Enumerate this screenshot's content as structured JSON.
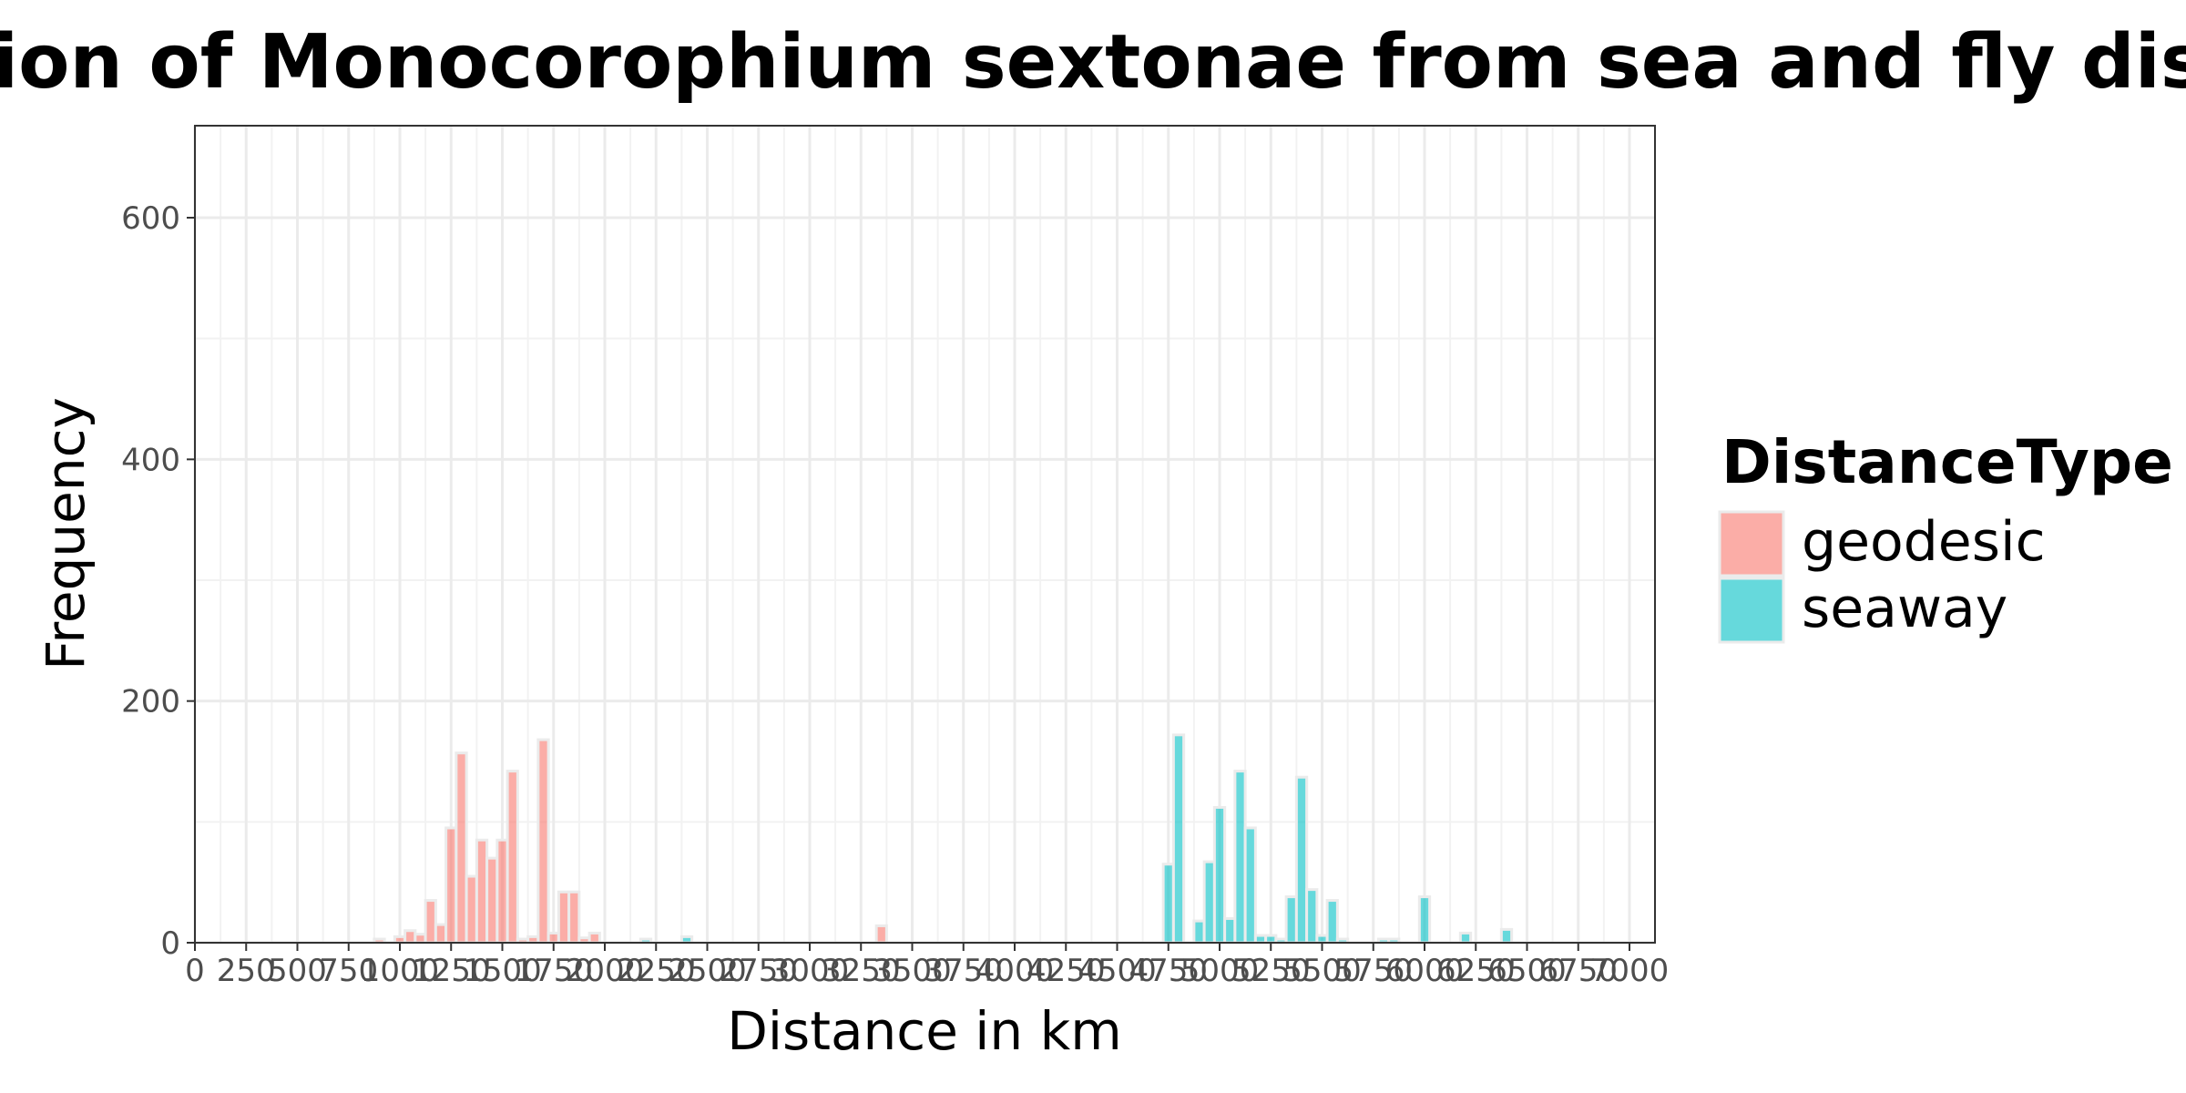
{
  "chart_data": {
    "type": "bar",
    "title": "ion of Monocorophium sextonae from sea and fly distances",
    "xlabel": "Distance in km",
    "ylabel": "Frequency",
    "xlim": [
      0,
      7250
    ],
    "ylim": [
      0,
      670
    ],
    "grid": true,
    "legend_position": "right",
    "legend_title": "DistanceType",
    "x_ticks": [
      0,
      250,
      500,
      750,
      1000,
      1250,
      1500,
      1750,
      2000,
      2250,
      2500,
      2750,
      3000,
      3250,
      3500,
      3750,
      4000,
      4250,
      4500,
      4750,
      5000,
      5250,
      5500,
      5750,
      6000,
      6250,
      6500,
      6750,
      7000
    ],
    "x_tick_labels": [
      "0",
      "250",
      "500",
      "750",
      "1000",
      "1250",
      "1500",
      "1750",
      "2000",
      "2250",
      "2500",
      "2750",
      "3000",
      "3250",
      "3500",
      "3750",
      "4000",
      "4250",
      "4500",
      "4750",
      "5000",
      "5250",
      "5500",
      "5750",
      "6000",
      "6250",
      "6500",
      "6750",
      "7000"
    ],
    "y_ticks": [
      0,
      200,
      400,
      600
    ],
    "y_tick_labels": [
      "0",
      "200",
      "400",
      "600"
    ],
    "bin_width": 50,
    "series": [
      {
        "name": "geodesic",
        "color": "#F8766D",
        "x": [
          900,
          1000,
          1050,
          1100,
          1150,
          1200,
          1250,
          1300,
          1350,
          1400,
          1450,
          1500,
          1550,
          1600,
          1650,
          1700,
          1750,
          1800,
          1850,
          1900,
          1950,
          3350
        ],
        "values": [
          3,
          5,
          10,
          7,
          35,
          15,
          95,
          157,
          55,
          85,
          70,
          85,
          142,
          3,
          5,
          168,
          8,
          42,
          42,
          4,
          8,
          14
        ]
      },
      {
        "name": "seaway",
        "color": "#00BFC4",
        "x": [
          2200,
          2400,
          4750,
          4800,
          4900,
          4950,
          5000,
          5050,
          5100,
          5150,
          5200,
          5250,
          5300,
          5350,
          5400,
          5450,
          5500,
          5550,
          5600,
          5800,
          5850,
          6000,
          6200,
          6400
        ],
        "values": [
          3,
          5,
          65,
          172,
          18,
          67,
          112,
          20,
          142,
          95,
          6,
          6,
          3,
          38,
          137,
          44,
          6,
          35,
          3,
          3,
          3,
          38,
          8,
          11
        ]
      }
    ]
  }
}
